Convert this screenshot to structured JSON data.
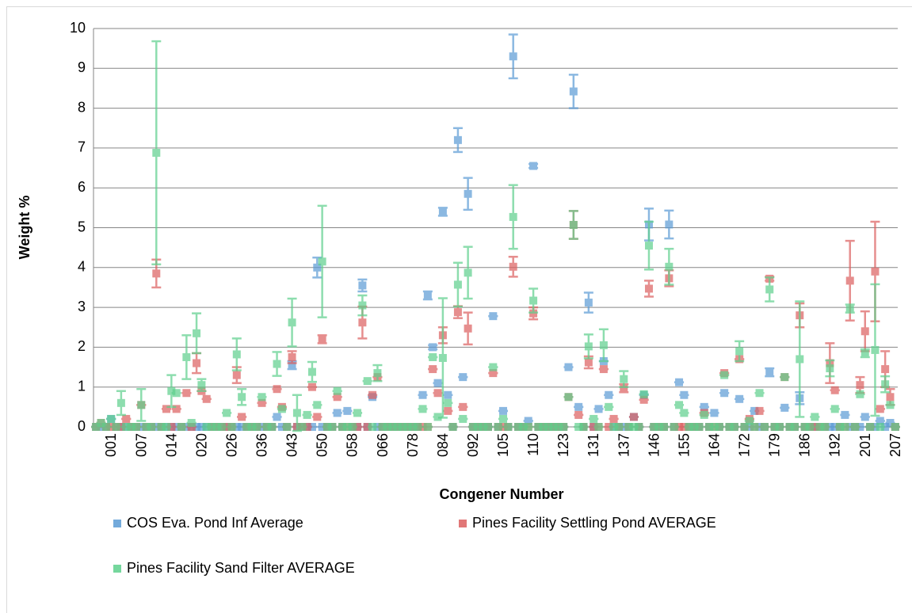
{
  "chart_data": {
    "type": "scatter",
    "xlabel": "Congener Number",
    "ylabel": "Weight %",
    "ylim": [
      0,
      10
    ],
    "yticks": [
      0,
      1,
      2,
      3,
      4,
      5,
      6,
      7,
      8,
      9,
      10
    ],
    "grid": true,
    "legend": "bottom",
    "categories": [
      null,
      null,
      null,
      "001",
      null,
      null,
      null,
      null,
      null,
      "007",
      null,
      null,
      null,
      null,
      null,
      "014",
      null,
      null,
      null,
      null,
      null,
      "020",
      null,
      null,
      null,
      null,
      null,
      "026",
      null,
      null,
      null,
      null,
      null,
      "036",
      null,
      null,
      null,
      null,
      null,
      "043",
      null,
      null,
      null,
      null,
      null,
      "050",
      null,
      null,
      null,
      null,
      null,
      "058",
      null,
      null,
      null,
      null,
      null,
      "066",
      null,
      null,
      null,
      null,
      null,
      "078",
      null,
      null,
      null,
      null,
      null,
      "084",
      null,
      null,
      null,
      null,
      null,
      "092",
      null,
      null,
      null,
      null,
      null,
      "105",
      null,
      null,
      null,
      null,
      null,
      "110",
      null,
      null,
      null,
      null,
      null,
      "123",
      null,
      null,
      null,
      null,
      null,
      "131",
      null,
      null,
      null,
      null,
      null,
      "137",
      null,
      null,
      null,
      null,
      null,
      "146",
      null,
      null,
      null,
      null,
      null,
      "155",
      null,
      null,
      null,
      null,
      null,
      "164",
      null,
      null,
      null,
      null,
      null,
      "172",
      null,
      null,
      null,
      null,
      null,
      "179",
      null,
      null,
      null,
      null,
      null,
      "186",
      null,
      null,
      null,
      null,
      null,
      "192",
      null,
      null,
      null,
      null,
      null,
      "201",
      null,
      null,
      null,
      null,
      null,
      "207"
    ],
    "series": [
      {
        "name": "COS Eva. Pond Inf Average",
        "color": "#5b9bd5",
        "values": [
          0,
          0,
          0,
          0.2,
          0,
          0,
          0,
          0,
          0,
          0,
          0,
          0,
          0,
          0,
          0,
          0,
          0,
          0,
          0,
          0,
          0,
          0,
          0,
          0,
          0,
          0,
          0,
          0,
          0,
          0,
          0,
          0,
          0,
          0,
          0,
          0,
          0.25,
          0,
          0,
          1.55,
          0,
          0,
          0,
          0,
          4.0,
          0,
          0,
          0,
          0.35,
          0,
          0.4,
          0,
          0,
          3.55,
          0,
          0.75,
          0,
          0,
          0,
          0,
          0,
          0,
          0,
          0,
          0,
          0.8,
          3.3,
          2.0,
          1.1,
          5.4,
          0.8,
          0,
          7.2,
          1.25,
          5.85,
          0,
          0,
          0,
          0,
          2.78,
          0,
          0.4,
          0,
          9.3,
          0,
          0,
          0.15,
          6.55,
          0,
          0,
          0,
          0,
          0,
          0,
          1.5,
          8.42,
          0.5,
          0,
          3.12,
          0,
          0.45,
          1.65,
          0.8,
          0,
          0,
          0,
          0,
          0.25,
          0,
          0.8,
          5.08,
          0,
          0,
          0,
          5.08,
          0,
          1.12,
          0.8,
          0,
          0,
          0,
          0.5,
          0,
          0.35,
          0,
          0.85,
          0,
          0,
          0.7,
          0,
          0,
          0.4,
          0,
          0,
          1.37,
          0,
          0,
          0.48,
          0,
          0,
          0.72,
          0,
          0,
          0,
          0,
          0,
          0,
          0,
          0,
          0.3,
          0,
          0,
          0,
          0.25,
          0,
          0,
          0.15,
          0,
          0.1,
          0
        ],
        "errors": [
          0,
          0,
          0,
          0,
          0,
          0,
          0,
          0,
          0,
          0,
          0,
          0,
          0,
          0,
          0,
          0,
          0,
          0,
          0,
          0,
          0,
          0,
          0,
          0,
          0,
          0,
          0,
          0,
          0,
          0,
          0,
          0,
          0,
          0,
          0,
          0,
          0,
          0,
          0,
          0.1,
          0,
          0,
          0,
          0,
          0.25,
          0,
          0,
          0,
          0,
          0,
          0,
          0,
          0,
          0.15,
          0,
          0,
          0,
          0,
          0,
          0,
          0,
          0,
          0,
          0,
          0,
          0,
          0.1,
          0.05,
          0,
          0.1,
          0,
          0,
          0.3,
          0,
          0.4,
          0,
          0,
          0,
          0,
          0,
          0,
          0,
          0,
          0.55,
          0,
          0,
          0,
          0.05,
          0,
          0,
          0,
          0,
          0,
          0,
          0,
          0.42,
          0,
          0,
          0.25,
          0,
          0,
          0,
          0,
          0,
          0,
          0,
          0,
          0,
          0,
          0,
          0.4,
          0,
          0,
          0,
          0.35,
          0,
          0,
          0,
          0,
          0,
          0,
          0,
          0,
          0,
          0,
          0,
          0,
          0,
          0,
          0,
          0,
          0,
          0,
          0,
          0.1,
          0,
          0,
          0,
          0,
          0,
          0.15,
          0,
          0,
          0,
          0,
          0,
          0,
          0,
          0,
          0,
          0,
          0,
          0,
          0,
          0,
          0,
          0,
          0,
          0,
          0
        ]
      },
      {
        "name": "Pines Facility Settling Pond AVERAGE",
        "color": "#dc5f5f",
        "values": [
          0,
          0.1,
          0,
          0,
          0,
          0,
          0.2,
          0,
          0,
          0.55,
          0,
          0,
          3.85,
          0,
          0.45,
          0,
          0.45,
          0,
          0.85,
          0,
          1.6,
          0.9,
          0.7,
          0,
          0,
          0,
          0,
          0,
          1.3,
          0.25,
          0,
          0,
          0,
          0.6,
          0,
          0,
          0.95,
          0.5,
          0,
          1.75,
          0,
          0,
          0,
          1.0,
          0.25,
          2.2,
          0,
          0,
          0.75,
          0,
          0,
          0,
          0,
          2.62,
          0,
          0.8,
          1.25,
          0,
          0,
          0,
          0,
          0,
          0,
          0,
          0,
          0,
          0,
          1.45,
          0.85,
          2.3,
          0.4,
          0,
          2.88,
          0.5,
          2.47,
          0,
          0,
          0,
          0,
          1.35,
          0,
          0,
          0,
          4.02,
          0,
          0,
          0,
          2.85,
          0,
          0,
          0,
          0,
          0,
          0,
          0.75,
          5.07,
          0.3,
          0,
          1.62,
          0,
          0,
          1.45,
          0,
          0.2,
          0,
          0.97,
          0,
          0.25,
          0,
          0.68,
          3.47,
          0,
          0,
          0,
          3.73,
          0,
          0,
          0,
          0,
          0,
          0,
          0.35,
          0,
          0,
          0,
          1.35,
          0,
          0,
          1.7,
          0,
          0.2,
          0,
          0.4,
          0,
          3.72,
          0,
          0,
          1.25,
          0,
          0,
          2.8,
          0,
          0,
          0,
          0,
          0,
          1.6,
          0.92,
          0,
          0,
          3.67,
          0,
          1.05,
          2.4,
          0,
          3.9,
          0.45,
          1.45,
          0.75,
          0
        ],
        "errors": [
          0,
          0,
          0,
          0,
          0,
          0,
          0,
          0,
          0,
          0,
          0,
          0,
          0.35,
          0,
          0,
          0,
          0,
          0,
          0,
          0,
          0.25,
          0,
          0,
          0,
          0,
          0,
          0,
          0,
          0.2,
          0,
          0,
          0,
          0,
          0,
          0,
          0,
          0,
          0,
          0,
          0.15,
          0,
          0,
          0,
          0,
          0,
          0.1,
          0,
          0,
          0,
          0,
          0,
          0,
          0,
          0.4,
          0,
          0,
          0,
          0,
          0,
          0,
          0,
          0,
          0,
          0,
          0,
          0,
          0,
          0,
          0,
          0.2,
          0,
          0,
          0.15,
          0,
          0.4,
          0,
          0,
          0,
          0,
          0,
          0,
          0,
          0,
          0.25,
          0,
          0,
          0,
          0.15,
          0,
          0,
          0,
          0,
          0,
          0,
          0,
          0.35,
          0,
          0,
          0.15,
          0,
          0,
          0,
          0,
          0,
          0,
          0.1,
          0,
          0,
          0,
          0,
          0.2,
          0,
          0,
          0,
          0.2,
          0,
          0,
          0,
          0,
          0,
          0,
          0,
          0,
          0,
          0,
          0,
          0,
          0,
          0,
          0,
          0,
          0,
          0,
          0,
          0.05,
          0,
          0,
          0,
          0,
          0,
          0.3,
          0,
          0,
          0,
          0,
          0,
          0.5,
          0,
          0,
          0,
          1.0,
          0,
          0.2,
          0.5,
          0,
          1.25,
          0,
          0.45,
          0.2,
          0
        ]
      },
      {
        "name": "Pines Facility Sand Filter AVERAGE",
        "color": "#5dd08c",
        "values": [
          0,
          0.1,
          0,
          0.2,
          0,
          0.6,
          0,
          0,
          0,
          0.55,
          0,
          0,
          6.88,
          0,
          0,
          0.9,
          0.85,
          0,
          1.75,
          0.1,
          2.35,
          1.05,
          0,
          0,
          0,
          0,
          0.35,
          0,
          1.82,
          0.75,
          0,
          0,
          0,
          0.75,
          0,
          0,
          1.58,
          0.45,
          0,
          2.62,
          0.35,
          0,
          0.3,
          1.38,
          0.55,
          4.15,
          0,
          0,
          0.9,
          0,
          0,
          0,
          0.35,
          3.05,
          1.15,
          0,
          1.35,
          0,
          0,
          0,
          0,
          0,
          0,
          0,
          0,
          0.45,
          0,
          1.75,
          0.25,
          1.73,
          0.6,
          0,
          3.57,
          0.2,
          3.87,
          0,
          0,
          0,
          0,
          1.5,
          0,
          0.2,
          0,
          5.27,
          0,
          0,
          0,
          3.17,
          0,
          0,
          0,
          0,
          0,
          0,
          0.75,
          5.07,
          0,
          0,
          2.02,
          0.2,
          0,
          2.05,
          0.5,
          0,
          0,
          1.2,
          0,
          0,
          0,
          0.82,
          4.55,
          0,
          0,
          0,
          4.02,
          0,
          0.55,
          0.35,
          0,
          0,
          0,
          0.3,
          0,
          0,
          0,
          1.3,
          0,
          0,
          1.9,
          0,
          0.15,
          0,
          0.85,
          0,
          3.45,
          0,
          0,
          1.25,
          0,
          0,
          1.7,
          0,
          0,
          0.25,
          0,
          0,
          1.47,
          0.45,
          0,
          0,
          2.97,
          0,
          0.82,
          1.85,
          0,
          1.93,
          0,
          1.07,
          0.55,
          0
        ],
        "errors": [
          0,
          0,
          0,
          0,
          0,
          0.3,
          0,
          0,
          0,
          0.4,
          0,
          0,
          2.8,
          0,
          0,
          0.4,
          0,
          0,
          0.55,
          0,
          0.5,
          0.15,
          0,
          0,
          0,
          0,
          0,
          0,
          0.4,
          0.2,
          0,
          0,
          0,
          0,
          0,
          0,
          0.3,
          0,
          0,
          0.6,
          0.45,
          0,
          0,
          0.25,
          0,
          1.4,
          0,
          0,
          0,
          0,
          0,
          0,
          0,
          0.25,
          0,
          0,
          0.2,
          0,
          0,
          0,
          0,
          0,
          0,
          0,
          0,
          0,
          0,
          0,
          0,
          1.5,
          0,
          0,
          0.55,
          0,
          0.65,
          0,
          0,
          0,
          0,
          0,
          0,
          0,
          0,
          0.8,
          0,
          0,
          0,
          0.3,
          0,
          0,
          0,
          0,
          0,
          0,
          0,
          0.35,
          0,
          0,
          0.3,
          0,
          0,
          0.4,
          0,
          0,
          0,
          0.2,
          0,
          0,
          0,
          0,
          0.6,
          0,
          0,
          0,
          0.45,
          0,
          0,
          0,
          0,
          0,
          0,
          0,
          0,
          0,
          0,
          0,
          0,
          0,
          0.25,
          0,
          0,
          0,
          0,
          0,
          0.3,
          0,
          0,
          0,
          0,
          0,
          1.45,
          0,
          0,
          0,
          0,
          0,
          0.2,
          0,
          0,
          0,
          0.1,
          0,
          0,
          0.1,
          0,
          1.65,
          0,
          0.2,
          0,
          0
        ]
      }
    ]
  }
}
